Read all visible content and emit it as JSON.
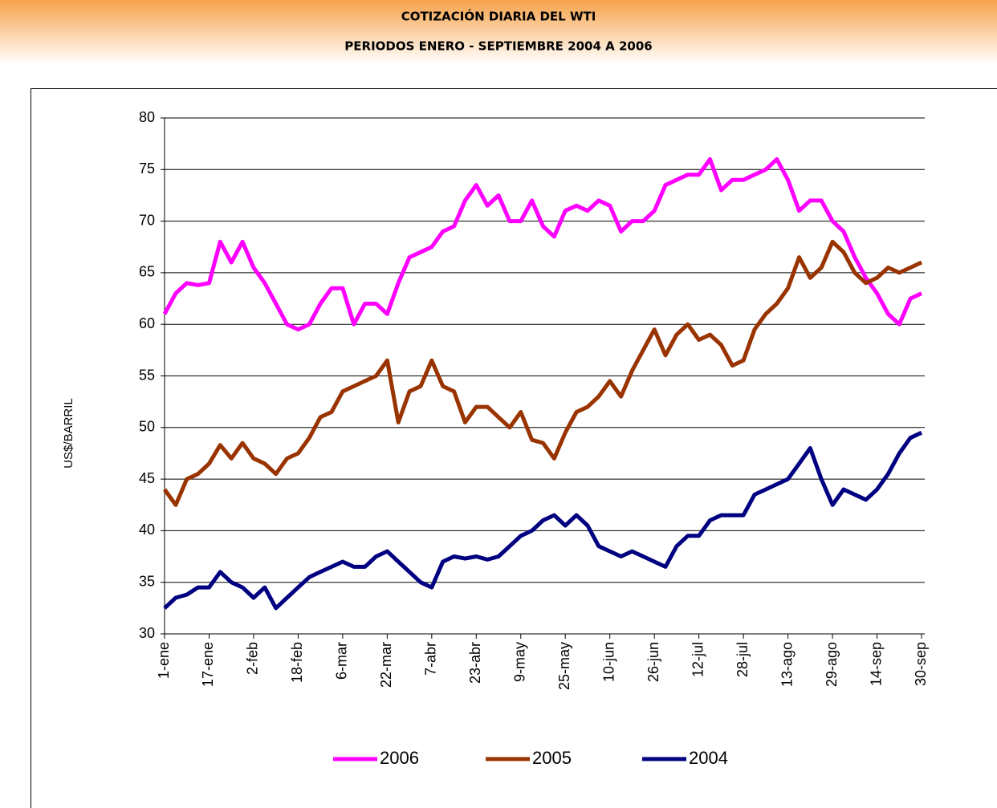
{
  "chart_data": {
    "type": "line",
    "title": "COTIZACIÓN DIARIA DEL WTI",
    "subtitle": "PERIODOS ENERO - SEPTIEMBRE  2004 A 2006",
    "y_label": "US$/BARRIL",
    "categories": [
      "1-ene",
      null,
      null,
      null,
      "17-ene",
      null,
      null,
      null,
      "2-feb",
      null,
      null,
      null,
      "18-feb",
      null,
      null,
      null,
      "6-mar",
      null,
      null,
      null,
      "22-mar",
      null,
      null,
      null,
      "7-abr",
      null,
      null,
      null,
      "23-abr",
      null,
      null,
      null,
      "9-may",
      null,
      null,
      null,
      "25-may",
      null,
      null,
      null,
      "10-jun",
      null,
      null,
      null,
      "26-jun",
      null,
      null,
      null,
      "12-jul",
      null,
      null,
      null,
      "28-jul",
      null,
      null,
      null,
      "13-ago",
      null,
      null,
      null,
      "29-ago",
      null,
      null,
      null,
      "14-sep",
      null,
      null,
      null,
      "30-sep"
    ],
    "series": [
      {
        "name": "2006",
        "color": "#ff00ff",
        "values": [
          61,
          63,
          64,
          63.8,
          64,
          68,
          66,
          68,
          65.5,
          64,
          62,
          60,
          59.5,
          60,
          62,
          63.5,
          63.5,
          60,
          62,
          62,
          61,
          64,
          66.5,
          67,
          67.5,
          69,
          69.5,
          72,
          73.5,
          71.5,
          72.5,
          70,
          70,
          72,
          69.5,
          68.5,
          71,
          71.5,
          71,
          72,
          71.5,
          69,
          70,
          70,
          71,
          73.5,
          74,
          74.5,
          74.5,
          76,
          73,
          74,
          74,
          74.5,
          75,
          76,
          74,
          71,
          72,
          72,
          70,
          69,
          66.5,
          64.5,
          63,
          61,
          60,
          62.5,
          63
        ]
      },
      {
        "name": "2005",
        "color": "#993300",
        "values": [
          44,
          42.5,
          45,
          45.5,
          46.5,
          48.3,
          47,
          48.5,
          47,
          46.5,
          45.5,
          47,
          47.5,
          49,
          51,
          51.5,
          53.5,
          54,
          54.5,
          55,
          56.5,
          50.5,
          53.5,
          54,
          56.5,
          54,
          53.5,
          50.5,
          52,
          52,
          51,
          50,
          51.5,
          48.8,
          48.5,
          47,
          49.5,
          51.5,
          52,
          53,
          54.5,
          53,
          55.5,
          57.5,
          59.5,
          57,
          59,
          60,
          58.5,
          59,
          58,
          56,
          56.5,
          59.5,
          61,
          62,
          63.5,
          66.5,
          64.5,
          65.5,
          68,
          67,
          65,
          64,
          64.5,
          65.5,
          65,
          65.5,
          66
        ]
      },
      {
        "name": "2004",
        "color": "#000080",
        "values": [
          32.5,
          33.5,
          33.8,
          34.5,
          34.5,
          36,
          35,
          34.5,
          33.5,
          34.5,
          32.5,
          33.5,
          34.5,
          35.5,
          36,
          36.5,
          37,
          36.5,
          36.5,
          37.5,
          38,
          37,
          36,
          35,
          34.5,
          37,
          37.5,
          37.3,
          37.5,
          37.2,
          37.5,
          38.5,
          39.5,
          40,
          41,
          41.5,
          40.5,
          41.5,
          40.5,
          38.5,
          38,
          37.5,
          38,
          37.5,
          37,
          36.5,
          38.5,
          39.5,
          39.5,
          41,
          41.5,
          41.5,
          41.5,
          43.5,
          44,
          44.5,
          45,
          46.5,
          48,
          45,
          42.5,
          44,
          43.5,
          43,
          44,
          45.5,
          47.5,
          49,
          49.5
        ]
      }
    ],
    "ylim": [
      30,
      80
    ],
    "yticks": [
      30,
      35,
      40,
      45,
      50,
      55,
      60,
      65,
      70,
      75,
      80
    ],
    "grid": true,
    "legend": "bottom"
  }
}
